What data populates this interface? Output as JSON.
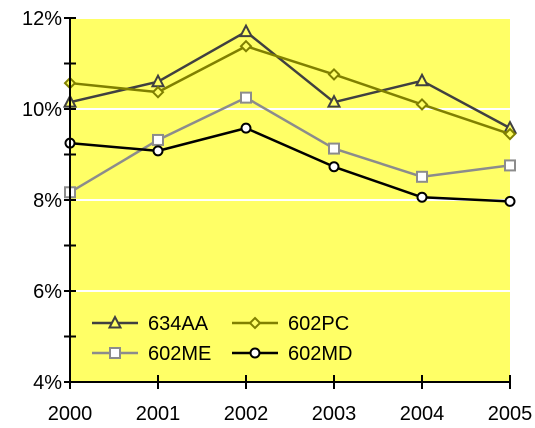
{
  "chart_data": {
    "type": "line",
    "x": [
      "2000",
      "2001",
      "2002",
      "2003",
      "2004",
      "2005"
    ],
    "ylim": [
      0.04,
      0.12
    ],
    "yticks": [
      {
        "value": 0.04,
        "label": "4%"
      },
      {
        "value": 0.06,
        "label": "6%"
      },
      {
        "value": 0.08,
        "label": "8%"
      },
      {
        "value": 0.1,
        "label": "10%"
      },
      {
        "value": 0.12,
        "label": "12%"
      }
    ],
    "grid": true,
    "legend": "bottom-left",
    "plot_background": "#ffff66",
    "series": [
      {
        "name": "634AA",
        "color": "#404040",
        "marker": "triangle",
        "values": [
          0.1015,
          0.106,
          0.117,
          0.1015,
          0.1062,
          0.0958
        ]
      },
      {
        "name": "602PC",
        "color": "#808000",
        "marker": "diamond",
        "values": [
          0.1057,
          0.1037,
          0.1138,
          0.1076,
          0.101,
          0.0945
        ]
      },
      {
        "name": "602ME",
        "color": "#8c8c8c",
        "marker": "square",
        "values": [
          0.0817,
          0.0932,
          0.1025,
          0.0913,
          0.0851,
          0.0876
        ]
      },
      {
        "name": "602MD",
        "color": "#000000",
        "marker": "circle",
        "values": [
          0.0925,
          0.0908,
          0.0958,
          0.0873,
          0.0806,
          0.0797
        ]
      }
    ]
  }
}
